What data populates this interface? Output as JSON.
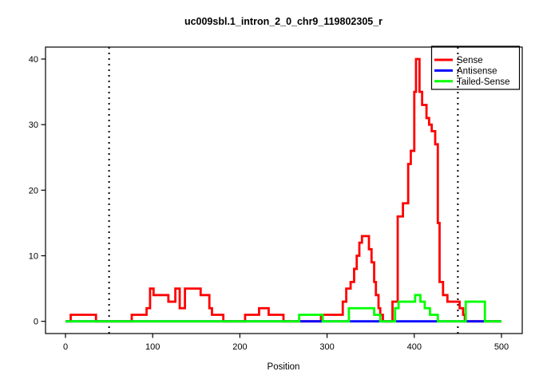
{
  "title": "uc009sbl.1_intron_2_0_chr9_119802305_r",
  "axes": {
    "xlabel": "Position",
    "x_ticks": [
      0,
      100,
      200,
      300,
      400,
      500
    ],
    "y_ticks": [
      0,
      10,
      20,
      30,
      40
    ]
  },
  "legend": {
    "items": [
      {
        "label": "Sense",
        "color": "#FF0000"
      },
      {
        "label": "Antisense",
        "color": "#0000FF"
      },
      {
        "label": "Tailed-Sense",
        "color": "#00FF00"
      }
    ]
  },
  "colors": {
    "sense": "#FF0000",
    "antisense": "#0000FF",
    "tailed_sense": "#00FF00",
    "frame": "#000000",
    "vline": "#000000"
  },
  "chart_data": {
    "type": "line",
    "subtype": "step-coverage",
    "title": "uc009sbl.1_intron_2_0_chr9_119802305_r",
    "xlabel": "Position",
    "ylabel": "",
    "xlim": [
      0,
      500
    ],
    "ylim": [
      0,
      40
    ],
    "x_ticks": [
      0,
      100,
      200,
      300,
      400,
      500
    ],
    "y_ticks": [
      0,
      10,
      20,
      30,
      40
    ],
    "grid": false,
    "legend_position": "top-right",
    "vlines": [
      50,
      450
    ],
    "vline_style": "dotted",
    "series": [
      {
        "name": "Sense",
        "color": "#FF0000",
        "style": "step",
        "segments": [
          [
            0,
            6,
            0
          ],
          [
            6,
            35,
            1
          ],
          [
            35,
            76,
            0
          ],
          [
            76,
            93,
            1
          ],
          [
            93,
            97,
            2
          ],
          [
            97,
            101,
            5
          ],
          [
            101,
            118,
            4
          ],
          [
            118,
            126,
            3
          ],
          [
            126,
            131,
            5
          ],
          [
            131,
            137,
            2
          ],
          [
            137,
            155,
            5
          ],
          [
            155,
            165,
            4
          ],
          [
            165,
            168,
            2
          ],
          [
            168,
            181,
            1
          ],
          [
            181,
            206,
            0
          ],
          [
            206,
            222,
            1
          ],
          [
            222,
            233,
            2
          ],
          [
            233,
            250,
            1
          ],
          [
            250,
            293,
            0
          ],
          [
            293,
            318,
            1
          ],
          [
            318,
            322,
            3
          ],
          [
            322,
            327,
            5
          ],
          [
            327,
            331,
            6
          ],
          [
            331,
            334,
            8
          ],
          [
            334,
            337,
            10
          ],
          [
            337,
            340,
            12
          ],
          [
            340,
            348,
            13
          ],
          [
            348,
            351,
            11
          ],
          [
            351,
            354,
            9
          ],
          [
            354,
            356,
            6
          ],
          [
            356,
            359,
            4
          ],
          [
            359,
            361,
            2
          ],
          [
            361,
            364,
            1
          ],
          [
            364,
            375,
            0
          ],
          [
            375,
            381,
            3
          ],
          [
            381,
            387,
            16
          ],
          [
            387,
            393,
            18
          ],
          [
            393,
            396,
            24
          ],
          [
            396,
            400,
            26
          ],
          [
            400,
            402,
            35
          ],
          [
            402,
            406,
            40
          ],
          [
            406,
            409,
            35
          ],
          [
            409,
            414,
            33
          ],
          [
            414,
            417,
            31
          ],
          [
            417,
            420,
            30
          ],
          [
            420,
            424,
            29
          ],
          [
            424,
            427,
            27
          ],
          [
            427,
            429,
            15
          ],
          [
            429,
            433,
            6
          ],
          [
            433,
            438,
            4
          ],
          [
            438,
            452,
            3
          ],
          [
            452,
            456,
            2
          ],
          [
            456,
            458,
            1
          ],
          [
            458,
            500,
            0
          ]
        ]
      },
      {
        "name": "Antisense",
        "color": "#0000FF",
        "style": "step",
        "segments": [
          [
            0,
            500,
            0
          ]
        ]
      },
      {
        "name": "Tailed-Sense",
        "color": "#00FF00",
        "style": "step",
        "segments": [
          [
            0,
            268,
            0
          ],
          [
            268,
            295,
            1
          ],
          [
            295,
            325,
            0
          ],
          [
            325,
            354,
            2
          ],
          [
            354,
            361,
            1
          ],
          [
            361,
            378,
            0
          ],
          [
            378,
            382,
            2
          ],
          [
            382,
            401,
            3
          ],
          [
            401,
            407,
            4
          ],
          [
            407,
            412,
            3
          ],
          [
            412,
            418,
            2
          ],
          [
            418,
            427,
            1
          ],
          [
            427,
            459,
            0
          ],
          [
            459,
            481,
            3
          ],
          [
            481,
            500,
            0
          ]
        ]
      }
    ]
  }
}
